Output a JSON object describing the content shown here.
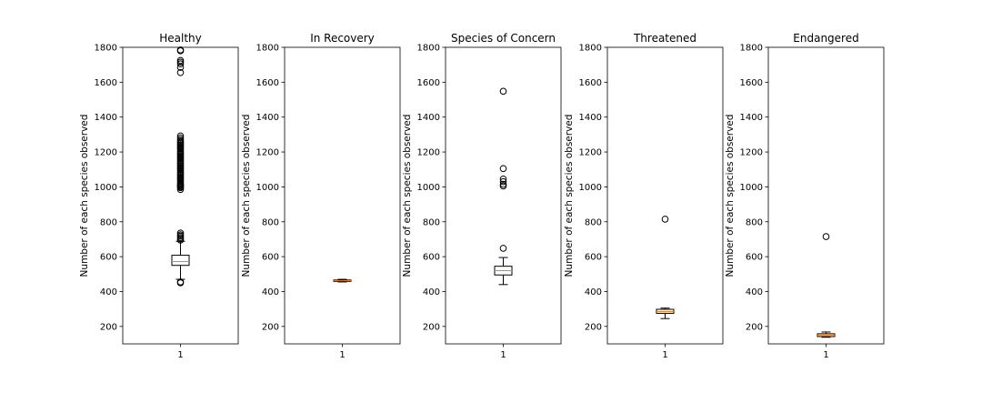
{
  "chart_data": [
    {
      "type": "box",
      "title": "Healthy",
      "ylabel": "Number of each species observed",
      "xticks": [
        "1"
      ],
      "ylim": [
        100,
        1800
      ],
      "yticks": [
        200,
        400,
        600,
        800,
        1000,
        1200,
        1400,
        1600,
        1800
      ],
      "box": {
        "whisker_low": 470,
        "q1": 550,
        "median": 572,
        "q3": 608,
        "whisker_high": 688
      },
      "outliers": [
        450,
        455,
        695,
        702,
        710,
        718,
        725,
        735,
        985,
        995,
        1000,
        1005,
        1010,
        1015,
        1022,
        1030,
        1038,
        1045,
        1052,
        1060,
        1068,
        1075,
        1082,
        1090,
        1098,
        1105,
        1112,
        1120,
        1128,
        1135,
        1142,
        1150,
        1158,
        1165,
        1172,
        1180,
        1188,
        1195,
        1202,
        1210,
        1218,
        1225,
        1232,
        1240,
        1248,
        1255,
        1262,
        1270,
        1280,
        1292,
        1655,
        1685,
        1705,
        1715,
        1725,
        1780,
        1785
      ]
    },
    {
      "type": "box",
      "title": "In Recovery",
      "ylabel": "Number of each species observed",
      "xticks": [
        "1"
      ],
      "ylim": [
        100,
        1800
      ],
      "yticks": [
        200,
        400,
        600,
        800,
        1000,
        1200,
        1400,
        1600,
        1800
      ],
      "box": {
        "whisker_low": 455,
        "q1": 458,
        "median": 462,
        "q3": 466,
        "whisker_high": 470
      },
      "outliers": []
    },
    {
      "type": "box",
      "title": "Species of Concern",
      "ylabel": "Number of each species observed",
      "xticks": [
        "1"
      ],
      "ylim": [
        100,
        1800
      ],
      "yticks": [
        200,
        400,
        600,
        800,
        1000,
        1200,
        1400,
        1600,
        1800
      ],
      "box": {
        "whisker_low": 440,
        "q1": 495,
        "median": 520,
        "q3": 545,
        "whisker_high": 595
      },
      "outliers": [
        648,
        1005,
        1015,
        1030,
        1045,
        1105,
        1548
      ]
    },
    {
      "type": "box",
      "title": "Threatened",
      "ylabel": "Number of each species observed",
      "xticks": [
        "1"
      ],
      "ylim": [
        100,
        1800
      ],
      "yticks": [
        200,
        400,
        600,
        800,
        1000,
        1200,
        1400,
        1600,
        1800
      ],
      "box": {
        "whisker_low": 245,
        "q1": 275,
        "median": 285,
        "q3": 298,
        "whisker_high": 305
      },
      "outliers": [
        815
      ]
    },
    {
      "type": "box",
      "title": "Endangered",
      "ylabel": "Number of each species observed",
      "xticks": [
        "1"
      ],
      "ylim": [
        100,
        1800
      ],
      "yticks": [
        200,
        400,
        600,
        800,
        1000,
        1200,
        1400,
        1600,
        1800
      ],
      "box": {
        "whisker_low": 138,
        "q1": 142,
        "median": 150,
        "q3": 158,
        "whisker_high": 168
      },
      "outliers": [
        715
      ]
    }
  ],
  "colors": {
    "median": "#ff7f0e",
    "box": "#000000",
    "axes": "#000000"
  }
}
